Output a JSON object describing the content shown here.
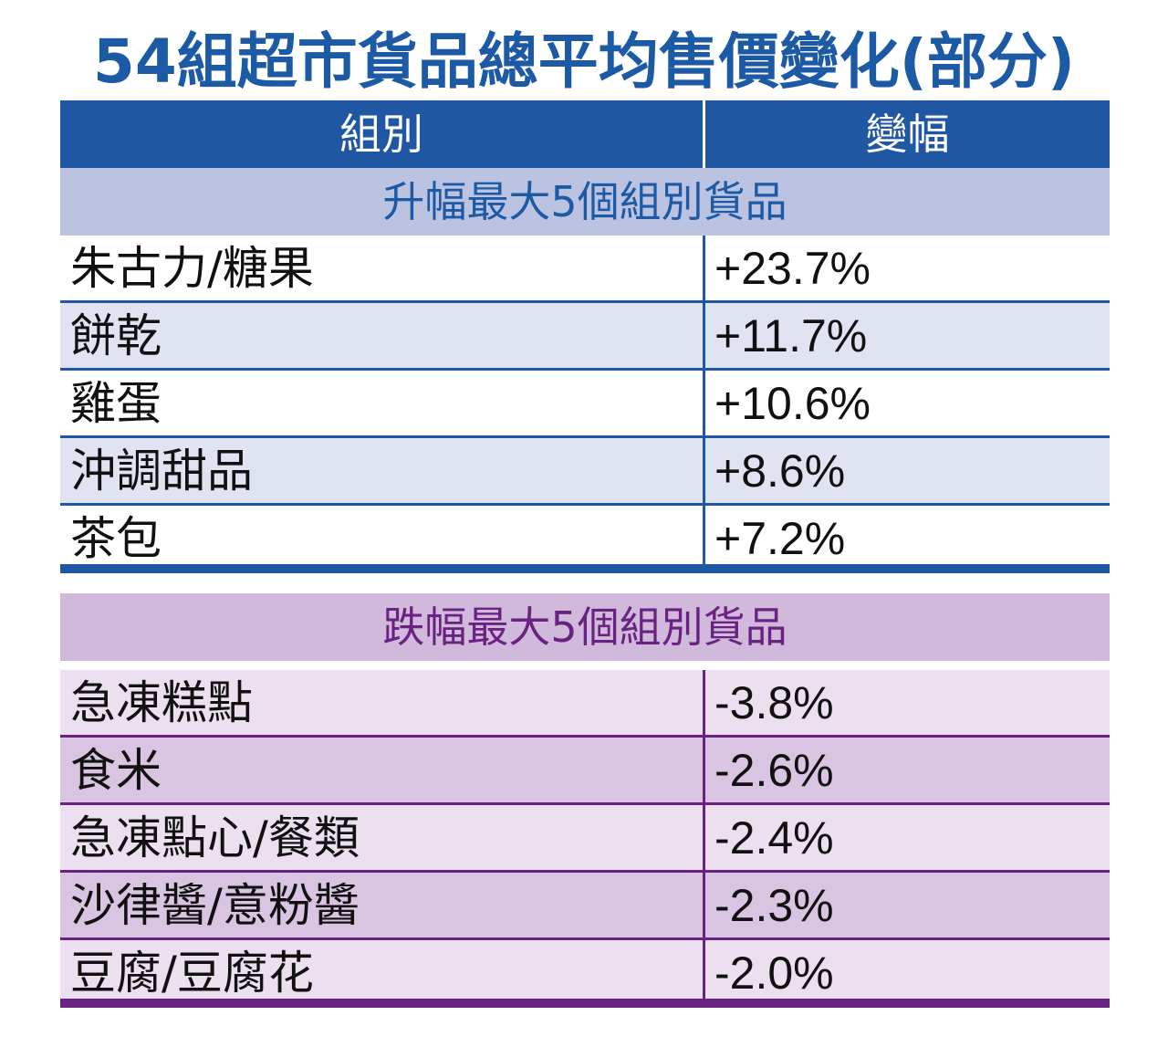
{
  "title": "54組超市貨品總平均售價變化(部分)",
  "header": {
    "col_group": "組別",
    "col_change": "變幅"
  },
  "colors": {
    "rise_accent": "#1f57a3",
    "fall_accent": "#6a2282"
  },
  "chart_data": {
    "type": "table",
    "title": "54組超市貨品總平均售價變化(部分)",
    "columns": [
      "組別",
      "變幅"
    ],
    "sections": [
      {
        "name": "升幅最大5個組別貨品",
        "rows": [
          {
            "group": "朱古力/糖果",
            "change": "+23.7%",
            "value": 23.7
          },
          {
            "group": "餅乾",
            "change": "+11.7%",
            "value": 11.7
          },
          {
            "group": "雞蛋",
            "change": "+10.6%",
            "value": 10.6
          },
          {
            "group": "沖調甜品",
            "change": "+8.6%",
            "value": 8.6
          },
          {
            "group": "茶包",
            "change": "+7.2%",
            "value": 7.2
          }
        ]
      },
      {
        "name": "跌幅最大5個組別貨品",
        "rows": [
          {
            "group": "急凍糕點",
            "change": "-3.8%",
            "value": -3.8
          },
          {
            "group": "食米",
            "change": "-2.6%",
            "value": -2.6
          },
          {
            "group": "急凍點心/餐類",
            "change": "-2.4%",
            "value": -2.4
          },
          {
            "group": "沙律醬/意粉醬",
            "change": "-2.3%",
            "value": -2.3
          },
          {
            "group": "豆腐/豆腐花",
            "change": "-2.0%",
            "value": -2.0
          }
        ]
      }
    ]
  }
}
